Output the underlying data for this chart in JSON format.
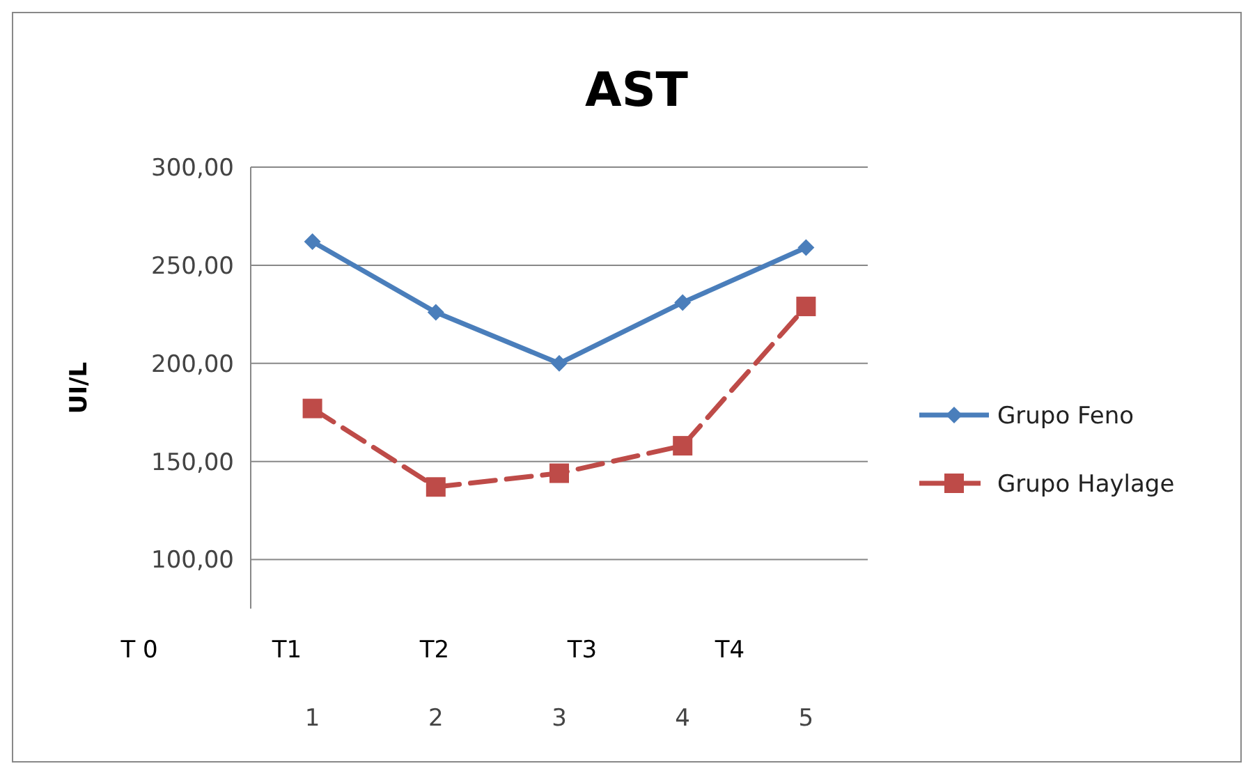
{
  "chart_data": {
    "type": "line",
    "title": "AST",
    "ylabel": "UI/L",
    "categories": [
      "1",
      "2",
      "3",
      "4",
      "5"
    ],
    "ylim": [
      75,
      300
    ],
    "yticks": [
      {
        "value": 100,
        "label": "100,00"
      },
      {
        "value": 150,
        "label": "150,00"
      },
      {
        "value": 200,
        "label": "200,00"
      },
      {
        "value": 250,
        "label": "250,00"
      },
      {
        "value": 300,
        "label": "300,00"
      }
    ],
    "grid": "y",
    "legend": "right",
    "annotations": [
      "T 0",
      "T1",
      "T2",
      "T3",
      "T4"
    ],
    "series": [
      {
        "name": "Grupo Feno",
        "color": "#4a7ebb",
        "values": [
          262,
          226,
          200,
          231,
          259
        ],
        "marker": "diamond",
        "line_style": "solid"
      },
      {
        "name": "Grupo Haylage",
        "color": "#be4b48",
        "values": [
          177,
          137,
          144,
          158,
          229
        ],
        "marker": "square",
        "line_style": "dashed"
      }
    ]
  }
}
